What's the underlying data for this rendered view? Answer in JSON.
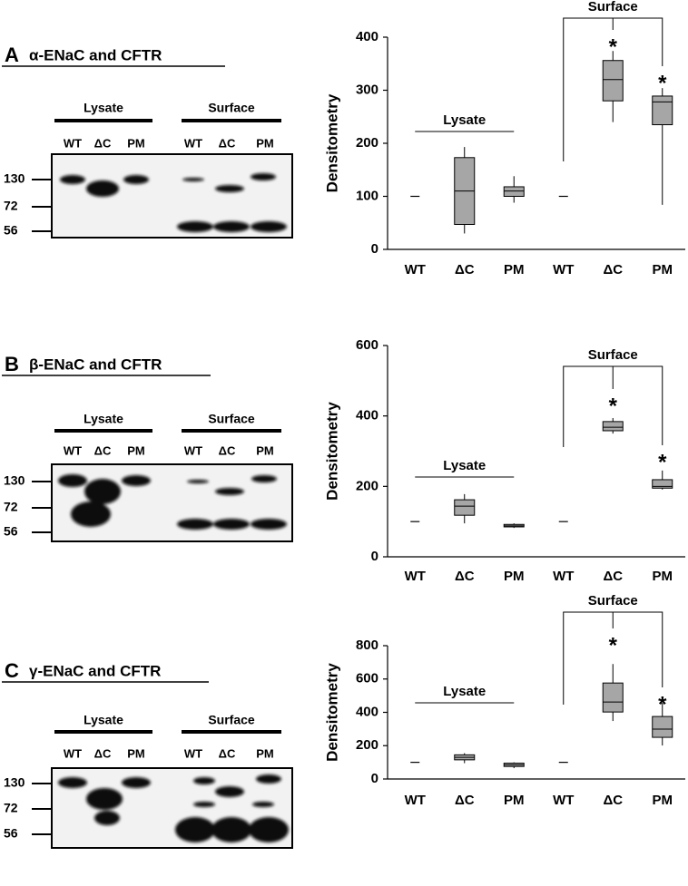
{
  "panels": [
    {
      "label": "A",
      "title": "α-ENaC and CFTR",
      "groups": [
        "Lysate",
        "Surface"
      ],
      "lanes": [
        "WT",
        "ΔC",
        "PM",
        "WT",
        "ΔC",
        "PM"
      ],
      "markers": [
        130,
        72,
        56
      ]
    },
    {
      "label": "B",
      "title": "β-ENaC and CFTR",
      "groups": [
        "Lysate",
        "Surface"
      ],
      "lanes": [
        "WT",
        "ΔC",
        "PM",
        "WT",
        "ΔC",
        "PM"
      ],
      "markers": [
        130,
        72,
        56
      ]
    },
    {
      "label": "C",
      "title": "γ-ENaC and CFTR",
      "groups": [
        "Lysate",
        "Surface"
      ],
      "lanes": [
        "WT",
        "ΔC",
        "PM",
        "WT",
        "ΔC",
        "PM"
      ],
      "markers": [
        130,
        72,
        56
      ]
    }
  ],
  "chart_data": [
    {
      "type": "box",
      "y_label": "Densitometry",
      "categories": [
        "WT",
        "ΔC",
        "PM",
        "WT",
        "ΔC",
        "PM"
      ],
      "groups": [
        "Lysate",
        "Surface"
      ],
      "annotations": [
        "*",
        "*"
      ],
      "color": "#a6a6a6",
      "ylim": [
        0,
        400
      ],
      "yticks": [
        0,
        100,
        200,
        300,
        400
      ],
      "min": [
        100,
        30,
        88,
        100,
        240,
        84
      ],
      "q1": [
        100,
        47,
        100,
        100,
        280,
        235
      ],
      "median": [
        100,
        110,
        110,
        100,
        320,
        278
      ],
      "q3": [
        100,
        173,
        118,
        100,
        356,
        289
      ],
      "max": [
        100,
        193,
        138,
        100,
        374,
        304
      ]
    },
    {
      "type": "box",
      "y_label": "Densitometry",
      "categories": [
        "WT",
        "ΔC",
        "PM",
        "WT",
        "ΔC",
        "PM"
      ],
      "groups": [
        "Lysate",
        "Surface"
      ],
      "annotations": [
        "*",
        "*"
      ],
      "color": "#a6a6a6",
      "ylim": [
        0,
        600
      ],
      "yticks": [
        0,
        200,
        400,
        600
      ],
      "min": [
        100,
        95,
        82,
        100,
        350,
        191
      ],
      "q1": [
        100,
        118,
        85,
        100,
        358,
        195
      ],
      "median": [
        100,
        144,
        88,
        100,
        368,
        200
      ],
      "q3": [
        100,
        162,
        92,
        100,
        384,
        219
      ],
      "max": [
        100,
        178,
        95,
        100,
        394,
        245
      ]
    },
    {
      "type": "box",
      "y_label": "Densitometry",
      "categories": [
        "WT",
        "ΔC",
        "PM",
        "WT",
        "ΔC",
        "PM"
      ],
      "groups": [
        "Lysate",
        "Surface"
      ],
      "annotations": [
        "*",
        "*"
      ],
      "color": "#a6a6a6",
      "ylim": [
        0,
        800
      ],
      "yticks": [
        0,
        200,
        400,
        600,
        800
      ],
      "min": [
        100,
        95,
        65,
        100,
        348,
        201
      ],
      "q1": [
        100,
        115,
        75,
        100,
        402,
        250
      ],
      "median": [
        100,
        130,
        85,
        100,
        462,
        299
      ],
      "q3": [
        100,
        145,
        95,
        100,
        576,
        375
      ],
      "max": [
        100,
        155,
        100,
        100,
        690,
        457
      ]
    }
  ]
}
